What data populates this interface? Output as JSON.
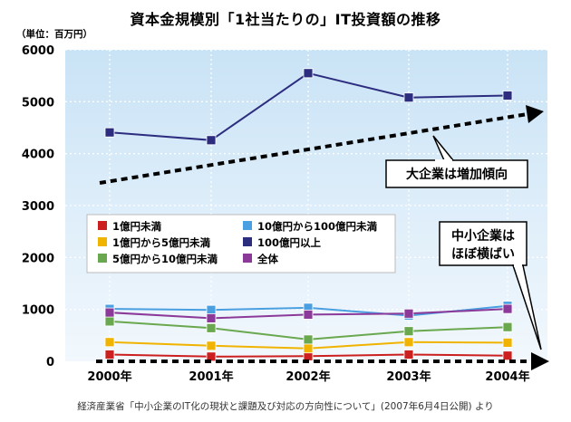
{
  "chart_data": {
    "type": "line",
    "title": "資本金規模別「1社当たりの」IT投資額の推移",
    "ylabel": "（単位：百万円）",
    "categories": [
      "2000年",
      "2001年",
      "2002年",
      "2003年",
      "2004年"
    ],
    "ylim": [
      0,
      6000
    ],
    "yticks": [
      0,
      1000,
      2000,
      3000,
      4000,
      5000,
      6000
    ],
    "grid": true,
    "legend_position": "center-left",
    "series": [
      {
        "name": "1億円未満",
        "color": "#cc1f1f",
        "values": [
          130,
          90,
          100,
          130,
          110
        ]
      },
      {
        "name": "1億円から5億円未満",
        "color": "#f0b400",
        "values": [
          370,
          300,
          250,
          370,
          360
        ]
      },
      {
        "name": "5億円から10億円未満",
        "color": "#6aa84f",
        "values": [
          770,
          640,
          420,
          580,
          660
        ]
      },
      {
        "name": "10億円から100億円未満",
        "color": "#4a9fe0",
        "values": [
          1010,
          990,
          1030,
          880,
          1070
        ]
      },
      {
        "name": "100億円以上",
        "color": "#2d2d7f",
        "values": [
          4410,
          4260,
          5550,
          5080,
          5120
        ]
      },
      {
        "name": "全体",
        "color": "#8b3a99",
        "values": [
          940,
          830,
          900,
          920,
          1010
        ]
      }
    ],
    "annotations": [
      {
        "text": "大企業は増加傾向"
      },
      {
        "text_lines": [
          "中小企業は",
          "ほぼ横ばい"
        ]
      }
    ],
    "source": "経済産業省「中小企業のIT化の現状と課題及び対応の方向性について」(2007年6月4日公開) より"
  }
}
